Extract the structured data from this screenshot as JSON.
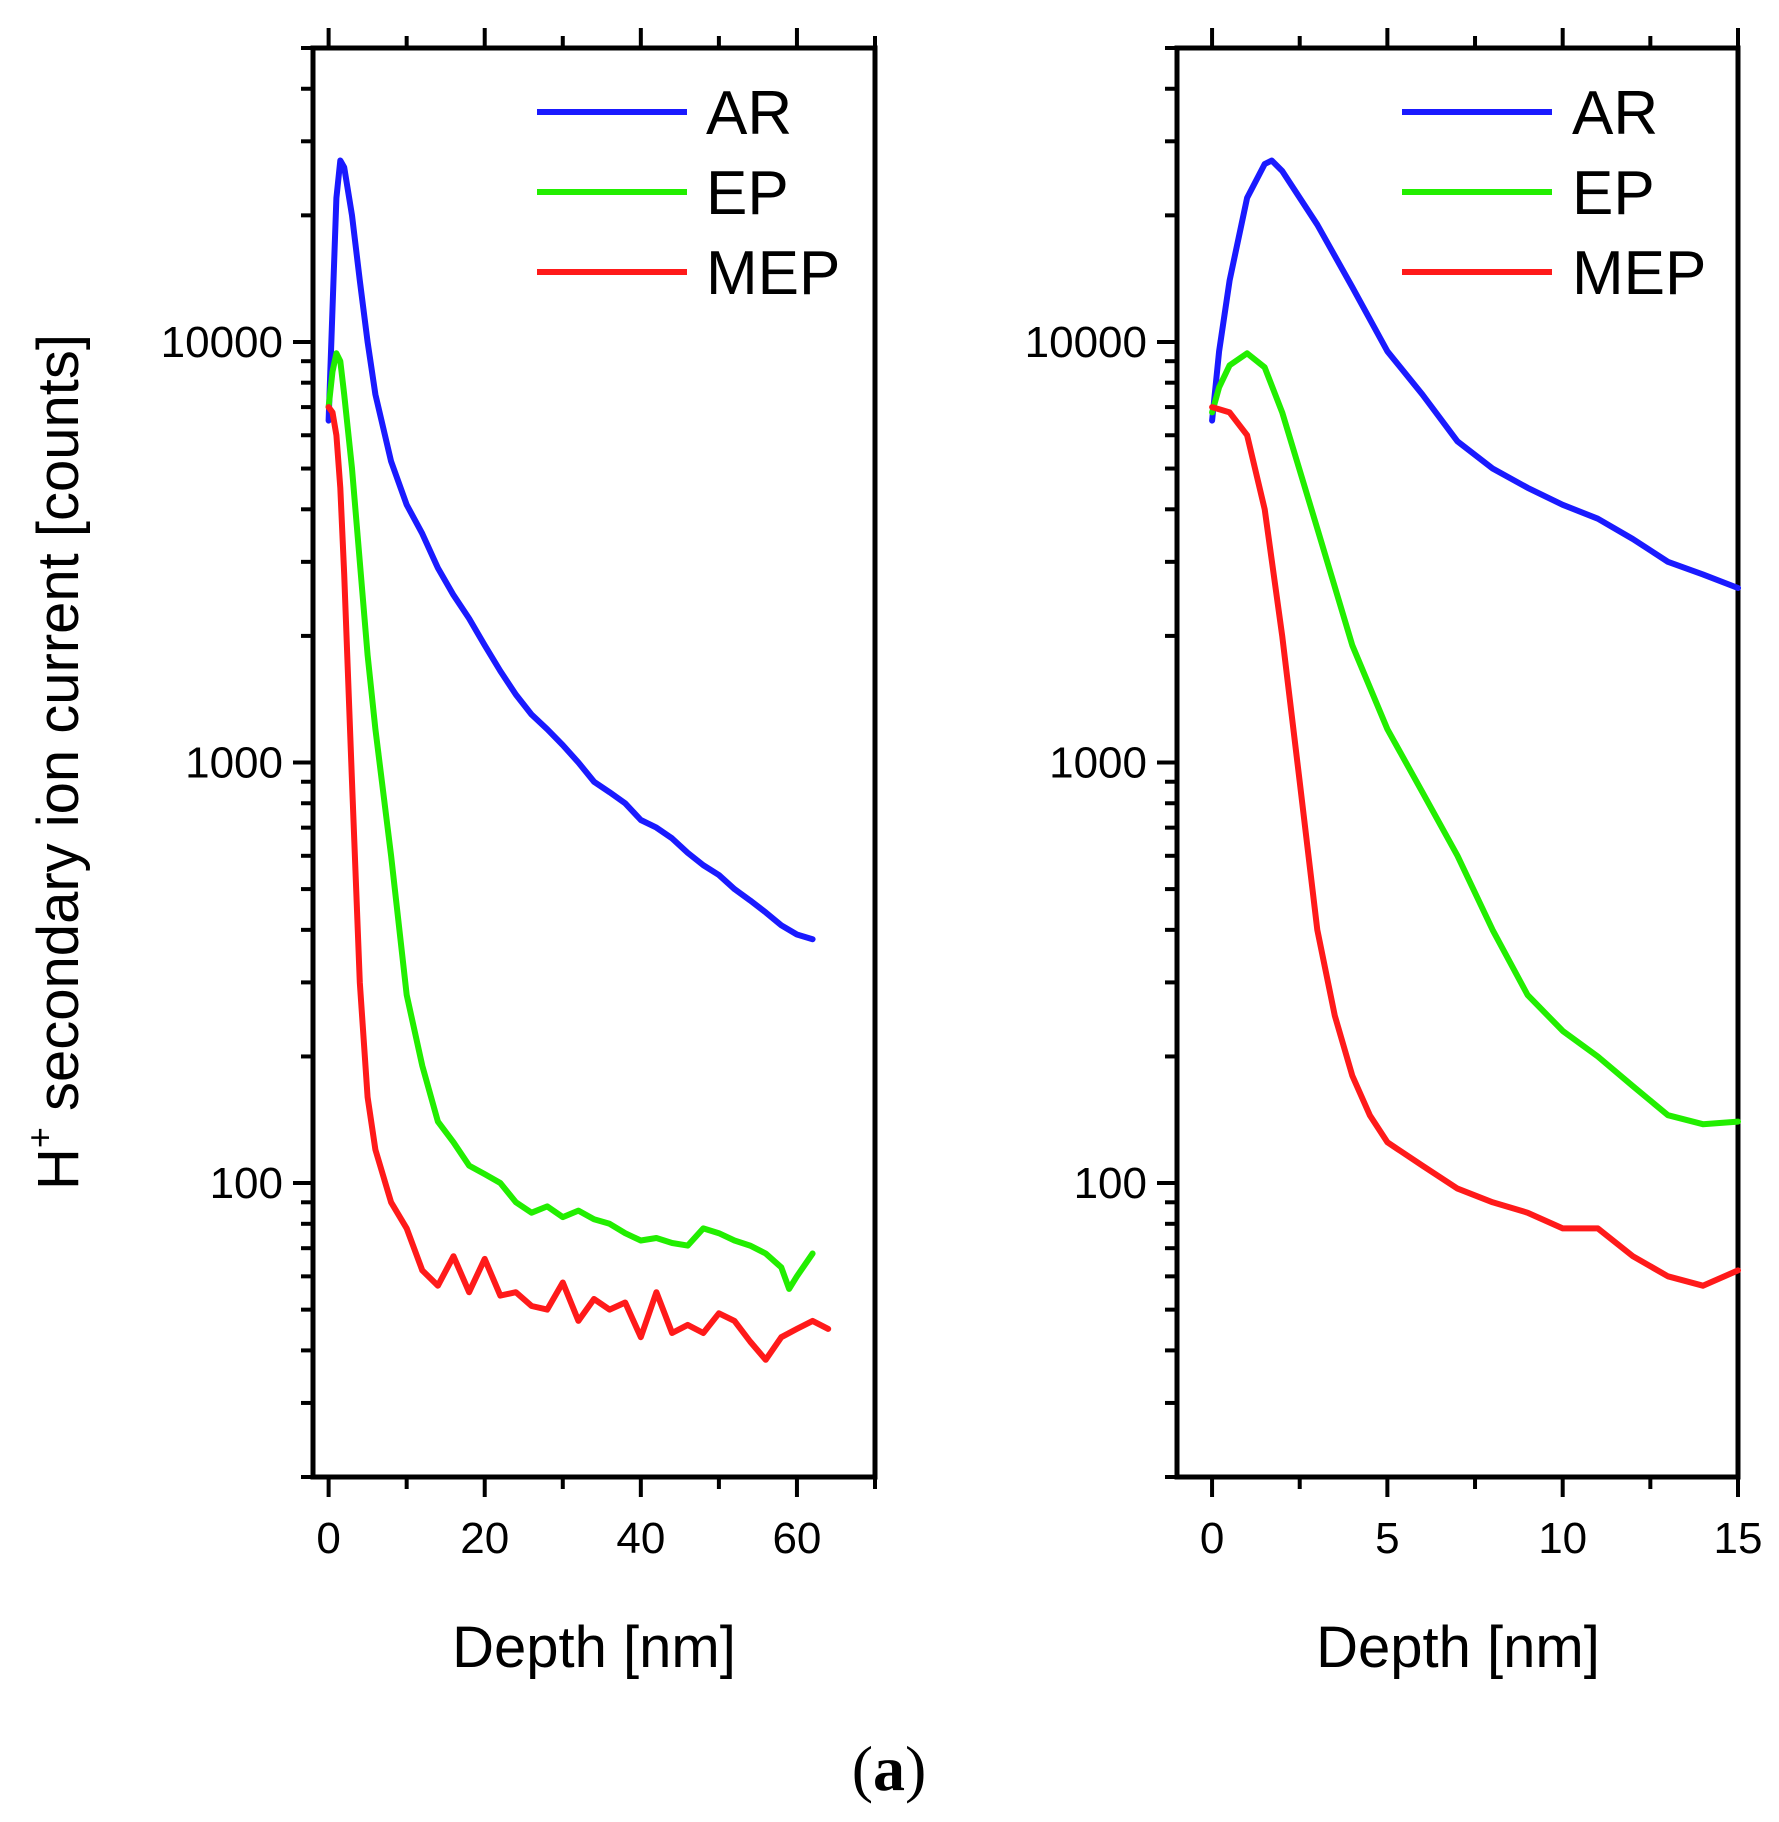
{
  "chart_data": [
    {
      "type": "line",
      "panel": "left",
      "title": "",
      "xlabel": "Depth [nm]",
      "ylabel_main": "H",
      "ylabel_sup": "+",
      "ylabel_rest": " secondary ion current [counts]",
      "yscale": "log",
      "xlim": [
        -2,
        70
      ],
      "ylim": [
        20,
        50000
      ],
      "xticks": [
        0,
        20,
        40,
        60
      ],
      "xtick_labels": [
        "0",
        "20",
        "40",
        "60"
      ],
      "yticks": [
        100,
        1000,
        10000
      ],
      "ytick_labels": [
        "100",
        "1000",
        "10000"
      ],
      "legend": {
        "position": "top-right",
        "entries": [
          "AR",
          "EP",
          "MEP"
        ]
      },
      "series": [
        {
          "name": "AR",
          "color": "#1a1aff",
          "x": [
            0,
            0.5,
            1,
            1.5,
            2,
            3,
            4,
            5,
            6,
            8,
            10,
            12,
            14,
            16,
            18,
            20,
            22,
            24,
            26,
            28,
            30,
            32,
            34,
            36,
            38,
            40,
            42,
            44,
            46,
            48,
            50,
            52,
            54,
            56,
            58,
            60,
            62
          ],
          "y": [
            6500,
            12000,
            22000,
            27000,
            26000,
            20000,
            14000,
            10000,
            7500,
            5200,
            4100,
            3500,
            2900,
            2500,
            2200,
            1900,
            1650,
            1450,
            1300,
            1200,
            1100,
            1000,
            900,
            850,
            800,
            730,
            700,
            660,
            610,
            570,
            540,
            500,
            470,
            440,
            410,
            390,
            380
          ]
        },
        {
          "name": "EP",
          "color": "#22ee00",
          "x": [
            0,
            0.5,
            1,
            1.5,
            2,
            3,
            4,
            5,
            6,
            8,
            10,
            12,
            14,
            16,
            18,
            20,
            22,
            24,
            26,
            28,
            30,
            32,
            34,
            36,
            38,
            40,
            42,
            44,
            46,
            48,
            50,
            52,
            54,
            56,
            58,
            59,
            60,
            62
          ],
          "y": [
            7000,
            8500,
            9400,
            9000,
            7500,
            5000,
            3000,
            1800,
            1200,
            600,
            280,
            190,
            140,
            125,
            110,
            105,
            100,
            90,
            85,
            88,
            83,
            86,
            82,
            80,
            76,
            73,
            74,
            72,
            71,
            78,
            76,
            73,
            71,
            68,
            63,
            56,
            60,
            68
          ]
        },
        {
          "name": "MEP",
          "color": "#ff1a1a",
          "x": [
            0,
            0.5,
            1,
            1.5,
            2,
            3,
            4,
            5,
            6,
            8,
            10,
            12,
            14,
            16,
            18,
            20,
            22,
            24,
            26,
            28,
            30,
            32,
            34,
            36,
            38,
            40,
            42,
            44,
            46,
            48,
            50,
            52,
            54,
            56,
            58,
            60,
            62,
            64
          ],
          "y": [
            7000,
            6800,
            6000,
            4500,
            2800,
            900,
            300,
            160,
            120,
            90,
            78,
            62,
            57,
            67,
            55,
            66,
            54,
            55,
            51,
            50,
            58,
            47,
            53,
            50,
            52,
            43,
            55,
            44,
            46,
            44,
            49,
            47,
            42,
            38,
            43,
            45,
            47,
            45
          ]
        }
      ]
    },
    {
      "type": "line",
      "panel": "right",
      "title": "",
      "xlabel": "Depth [nm]",
      "yscale": "log",
      "xlim": [
        -1,
        15
      ],
      "ylim": [
        20,
        50000
      ],
      "xticks": [
        0,
        5,
        10,
        15
      ],
      "xtick_labels": [
        "0",
        "5",
        "10",
        "15"
      ],
      "yticks": [
        100,
        1000,
        10000
      ],
      "ytick_labels": [
        "100",
        "1000",
        "10000"
      ],
      "legend": {
        "position": "top-right",
        "entries": [
          "AR",
          "EP",
          "MEP"
        ]
      },
      "series": [
        {
          "name": "AR",
          "color": "#1a1aff",
          "x": [
            0,
            0.2,
            0.5,
            1,
            1.5,
            1.7,
            2,
            3,
            4,
            5,
            6,
            7,
            8,
            9,
            10,
            11,
            12,
            13,
            14,
            15
          ],
          "y": [
            6500,
            9500,
            14000,
            22000,
            26500,
            27000,
            25500,
            19000,
            13500,
            9500,
            7500,
            5800,
            5000,
            4500,
            4100,
            3800,
            3400,
            3000,
            2800,
            2600
          ]
        },
        {
          "name": "EP",
          "color": "#22ee00",
          "x": [
            0,
            0.2,
            0.5,
            1,
            1.5,
            2,
            3,
            4,
            5,
            6,
            7,
            8,
            9,
            10,
            11,
            12,
            13,
            14,
            15
          ],
          "y": [
            6800,
            7800,
            8800,
            9400,
            8700,
            6800,
            3600,
            1900,
            1200,
            850,
            600,
            400,
            280,
            230,
            200,
            170,
            145,
            138,
            140
          ]
        },
        {
          "name": "MEP",
          "color": "#ff1a1a",
          "x": [
            0,
            0.5,
            1,
            1.5,
            2,
            2.5,
            3,
            3.5,
            4,
            4.5,
            5,
            6,
            7,
            8,
            9,
            10,
            10.5,
            11,
            12,
            13,
            14,
            15
          ],
          "y": [
            7000,
            6800,
            6000,
            4000,
            2000,
            900,
            400,
            250,
            180,
            145,
            125,
            110,
            97,
            90,
            85,
            78,
            78,
            78,
            67,
            60,
            57,
            62
          ]
        }
      ]
    }
  ],
  "caption": {
    "open": "(",
    "letter": "a",
    "close": ")"
  }
}
